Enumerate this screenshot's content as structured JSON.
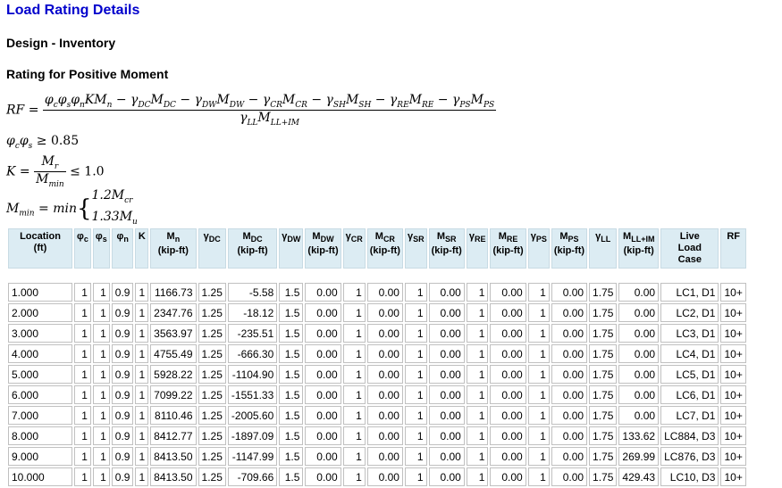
{
  "title": "Load Rating Details",
  "subtitle1": "Design - Inventory",
  "subtitle2": "Rating for Positive Moment",
  "formula": {
    "cond1_value": "0.85",
    "k_value": "1.0",
    "mmin_case1": "1.2M",
    "mmin_case2": "1.33M"
  },
  "columns": [
    "Location (ft)",
    "φc",
    "φs",
    "φn",
    "K",
    "Mn (kip-ft)",
    "γDC",
    "MDC (kip-ft)",
    "γDW",
    "MDW (kip-ft)",
    "γCR",
    "MCR (kip-ft)",
    "γSR",
    "MSR (kip-ft)",
    "γRE",
    "MRE (kip-ft)",
    "γPS",
    "MPS (kip-ft)",
    "γLL",
    "MLL+IM (kip-ft)",
    "Live Load Case",
    "RF"
  ],
  "rows": [
    [
      "1.000",
      "1",
      "1",
      "0.9",
      "1",
      "1166.73",
      "1.25",
      "-5.58",
      "1.5",
      "0.00",
      "1",
      "0.00",
      "1",
      "0.00",
      "1",
      "0.00",
      "1",
      "0.00",
      "1.75",
      "0.00",
      "LC1, D1",
      "10+"
    ],
    [
      "2.000",
      "1",
      "1",
      "0.9",
      "1",
      "2347.76",
      "1.25",
      "-18.12",
      "1.5",
      "0.00",
      "1",
      "0.00",
      "1",
      "0.00",
      "1",
      "0.00",
      "1",
      "0.00",
      "1.75",
      "0.00",
      "LC2, D1",
      "10+"
    ],
    [
      "3.000",
      "1",
      "1",
      "0.9",
      "1",
      "3563.97",
      "1.25",
      "-235.51",
      "1.5",
      "0.00",
      "1",
      "0.00",
      "1",
      "0.00",
      "1",
      "0.00",
      "1",
      "0.00",
      "1.75",
      "0.00",
      "LC3, D1",
      "10+"
    ],
    [
      "4.000",
      "1",
      "1",
      "0.9",
      "1",
      "4755.49",
      "1.25",
      "-666.30",
      "1.5",
      "0.00",
      "1",
      "0.00",
      "1",
      "0.00",
      "1",
      "0.00",
      "1",
      "0.00",
      "1.75",
      "0.00",
      "LC4, D1",
      "10+"
    ],
    [
      "5.000",
      "1",
      "1",
      "0.9",
      "1",
      "5928.22",
      "1.25",
      "-1104.90",
      "1.5",
      "0.00",
      "1",
      "0.00",
      "1",
      "0.00",
      "1",
      "0.00",
      "1",
      "0.00",
      "1.75",
      "0.00",
      "LC5, D1",
      "10+"
    ],
    [
      "6.000",
      "1",
      "1",
      "0.9",
      "1",
      "7099.22",
      "1.25",
      "-1551.33",
      "1.5",
      "0.00",
      "1",
      "0.00",
      "1",
      "0.00",
      "1",
      "0.00",
      "1",
      "0.00",
      "1.75",
      "0.00",
      "LC6, D1",
      "10+"
    ],
    [
      "7.000",
      "1",
      "1",
      "0.9",
      "1",
      "8110.46",
      "1.25",
      "-2005.60",
      "1.5",
      "0.00",
      "1",
      "0.00",
      "1",
      "0.00",
      "1",
      "0.00",
      "1",
      "0.00",
      "1.75",
      "0.00",
      "LC7, D1",
      "10+"
    ],
    [
      "8.000",
      "1",
      "1",
      "0.9",
      "1",
      "8412.77",
      "1.25",
      "-1897.09",
      "1.5",
      "0.00",
      "1",
      "0.00",
      "1",
      "0.00",
      "1",
      "0.00",
      "1",
      "0.00",
      "1.75",
      "133.62",
      "LC884, D3",
      "10+"
    ],
    [
      "9.000",
      "1",
      "1",
      "0.9",
      "1",
      "8413.50",
      "1.25",
      "-1147.99",
      "1.5",
      "0.00",
      "1",
      "0.00",
      "1",
      "0.00",
      "1",
      "0.00",
      "1",
      "0.00",
      "1.75",
      "269.99",
      "LC876, D3",
      "10+"
    ],
    [
      "10.000",
      "1",
      "1",
      "0.9",
      "1",
      "8413.50",
      "1.25",
      "-709.66",
      "1.5",
      "0.00",
      "1",
      "0.00",
      "1",
      "0.00",
      "1",
      "0.00",
      "1",
      "0.00",
      "1.75",
      "429.43",
      "LC10, D3",
      "10+"
    ]
  ]
}
